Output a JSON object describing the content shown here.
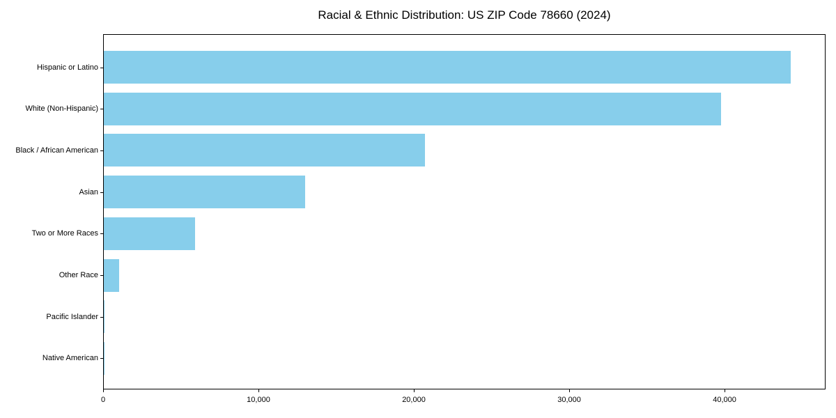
{
  "chart_data": {
    "type": "bar",
    "orientation": "horizontal",
    "title": "Racial & Ethnic Distribution: US ZIP Code 78660 (2024)",
    "categories": [
      "Hispanic or Latino",
      "White (Non-Hispanic)",
      "Black / African American",
      "Asian",
      "Two or More Races",
      "Other Race",
      "Pacific Islander",
      "Native American"
    ],
    "values": [
      44300,
      39800,
      20700,
      13000,
      5900,
      1000,
      60,
      40
    ],
    "xlabel": "",
    "ylabel": "",
    "xlim": [
      0,
      46500
    ],
    "xticks": [
      0,
      10000,
      20000,
      30000,
      40000
    ],
    "xtick_labels": [
      "0",
      "10,000",
      "20,000",
      "30,000",
      "40,000"
    ],
    "bar_color": "#87CEEB",
    "background_color": "#ffffff",
    "spine_color": "#000000",
    "grid": false,
    "legend": false
  }
}
